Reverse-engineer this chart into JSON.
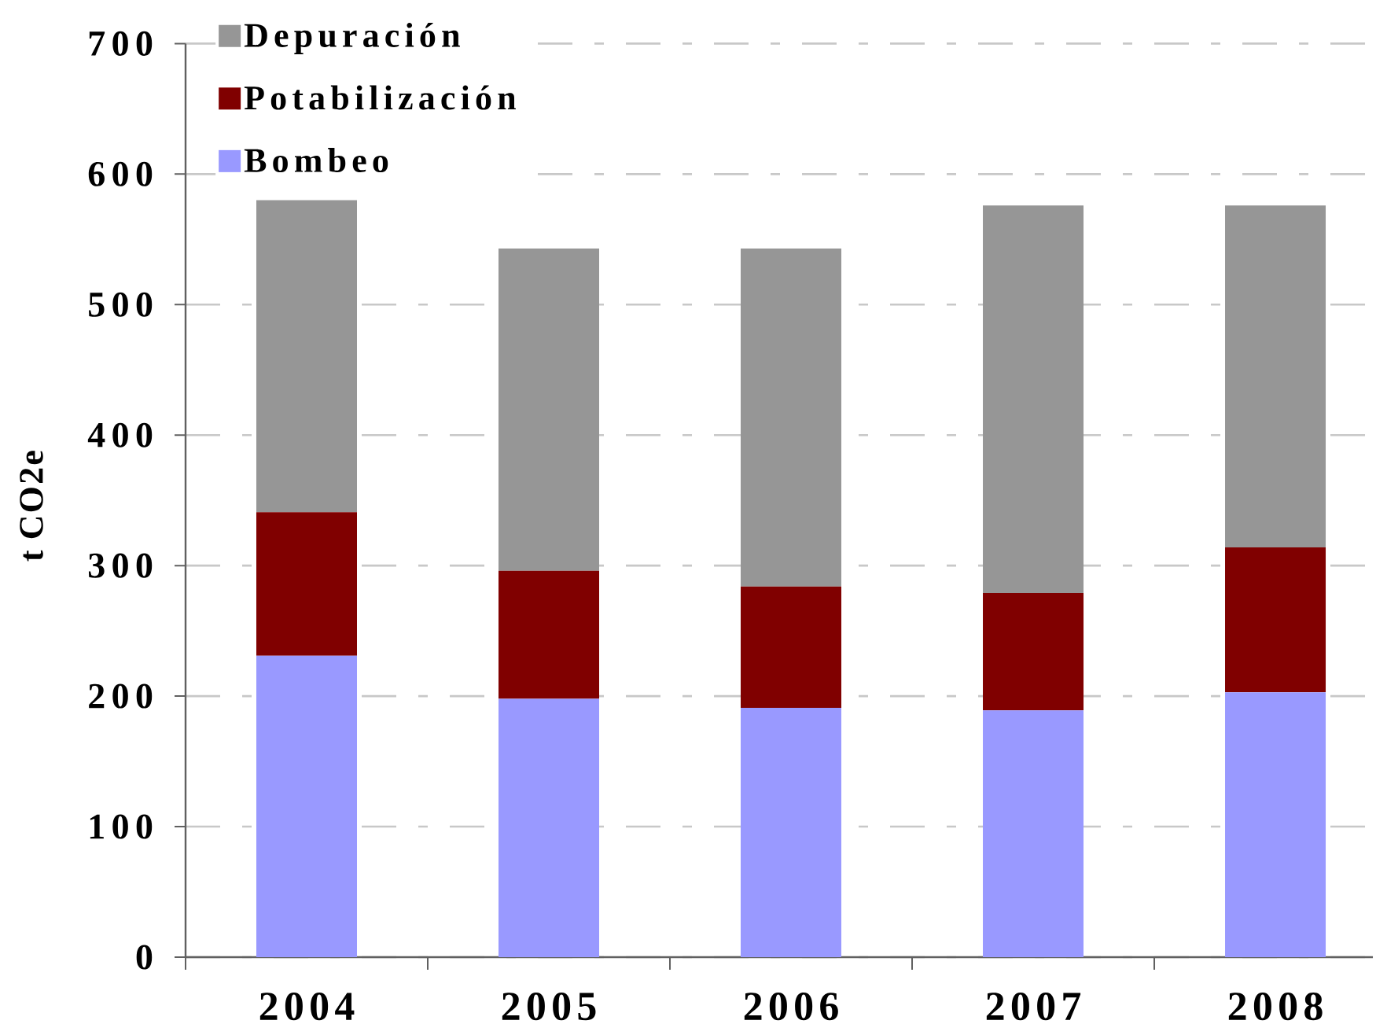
{
  "chart_data": {
    "type": "bar",
    "stacked": true,
    "ylabel": "t CO2e",
    "categories": [
      "2004",
      "2005",
      "2006",
      "2007",
      "2008"
    ],
    "series": [
      {
        "name": "Bombeo",
        "color": "#9999ff",
        "values": [
          231,
          198,
          191,
          189,
          203
        ]
      },
      {
        "name": "Potabilización",
        "color": "#800000",
        "values": [
          110,
          98,
          93,
          90,
          111
        ]
      },
      {
        "name": "Depuración",
        "color": "#969696",
        "values": [
          239,
          247,
          259,
          297,
          262
        ]
      }
    ],
    "ylim": [
      0,
      700
    ],
    "yticks": [
      0,
      100,
      200,
      300,
      400,
      500,
      600,
      700
    ],
    "grid": "y",
    "legend": "top left"
  }
}
